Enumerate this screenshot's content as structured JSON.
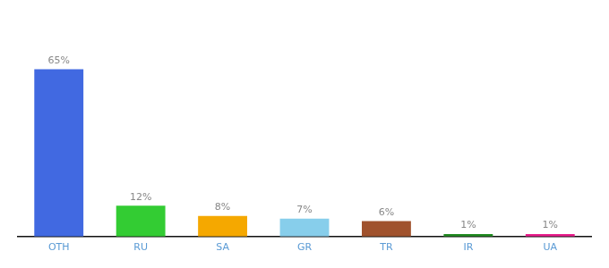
{
  "chart_data": {
    "type": "bar",
    "categories": [
      "OTH",
      "RU",
      "SA",
      "GR",
      "TR",
      "IR",
      "UA"
    ],
    "values": [
      65,
      12,
      8,
      7,
      6,
      1,
      1
    ],
    "value_labels": [
      "65%",
      "12%",
      "8%",
      "7%",
      "6%",
      "1%",
      "1%"
    ],
    "colors": [
      "#4169e1",
      "#33cc33",
      "#f5a800",
      "#87ceeb",
      "#a0522d",
      "#228b22",
      "#e91e8c"
    ],
    "ylim": [
      0,
      78
    ],
    "data_labels": true,
    "grid": false,
    "tick_labels": "x"
  }
}
